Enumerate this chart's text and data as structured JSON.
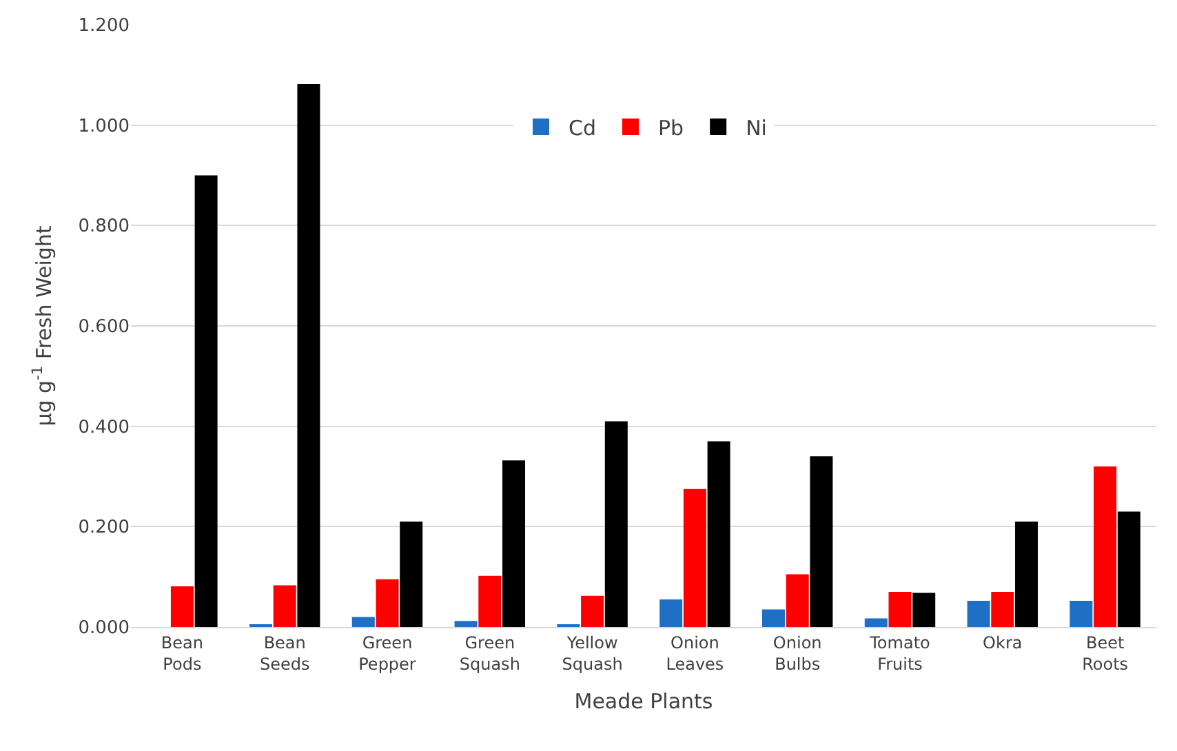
{
  "chart_data": {
    "type": "bar",
    "xlabel": "Meade Plants",
    "ylabel": "µg g$^{-1}$ Fresh Weight",
    "categories": [
      "Bean Pods",
      "Bean Seeds",
      "Green Pepper",
      "Green Squash",
      "Yellow Squash",
      "Onion Leaves",
      "Onion Bulbs",
      "Tomato Fruits",
      "Okra",
      "Beet Roots"
    ],
    "series": [
      {
        "name": "Cd",
        "color": "#1f6fc5",
        "values": [
          0,
          0.005,
          0.02,
          0.012,
          0.005,
          0.055,
          0.035,
          0.017,
          0.052,
          0.052
        ]
      },
      {
        "name": "Pb",
        "color": "#ff0000",
        "values": [
          0.081,
          0.083,
          0.095,
          0.102,
          0.062,
          0.275,
          0.105,
          0.07,
          0.07,
          0.32
        ]
      },
      {
        "name": "Ni",
        "color": "#000000",
        "values": [
          0.9,
          1.082,
          0.21,
          0.332,
          0.41,
          0.37,
          0.34,
          0.068,
          0.21,
          0.23
        ]
      }
    ],
    "ylim": [
      0,
      1.2
    ],
    "yticks": [
      {
        "value": 0,
        "label": "0.000"
      },
      {
        "value": 0.2,
        "label": "0.200"
      },
      {
        "value": 0.4,
        "label": "0.400"
      },
      {
        "value": 0.6,
        "label": "0.600"
      },
      {
        "value": 0.8,
        "label": "0.800"
      },
      {
        "value": 1.0,
        "label": "1.000"
      },
      {
        "value": 1.2,
        "label": "1.200"
      }
    ],
    "grid": "y",
    "legend": "top"
  }
}
